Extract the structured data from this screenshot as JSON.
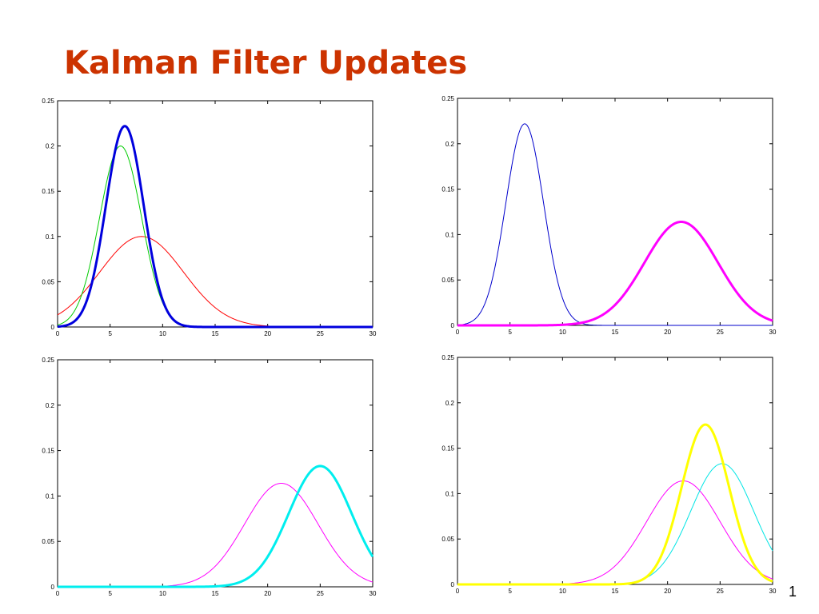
{
  "slide": {
    "title": "Kalman Filter Updates",
    "page_number": "1"
  },
  "chart_data": [
    {
      "type": "line",
      "xlim": [
        0,
        30
      ],
      "ylim": [
        0,
        0.25
      ],
      "x_ticks": [
        "0",
        "5",
        "10",
        "15",
        "20",
        "25",
        "30"
      ],
      "y_ticks": [
        "0",
        "0.05",
        "0.1",
        "0.15",
        "0.2",
        "0.25"
      ],
      "grid": false,
      "series": [
        {
          "color": "#ff0000",
          "width": "thin",
          "curve": "gaussian",
          "mean": 8.0,
          "peak": 0.1
        },
        {
          "color": "#00cc00",
          "width": "thin",
          "curve": "gaussian",
          "mean": 6.0,
          "peak": 0.2
        },
        {
          "color": "#0000dd",
          "width": "thick",
          "curve": "gaussian",
          "mean": 6.4,
          "peak": 0.222
        }
      ]
    },
    {
      "type": "line",
      "xlim": [
        0,
        30
      ],
      "ylim": [
        0,
        0.25
      ],
      "x_ticks": [
        "0",
        "5",
        "10",
        "15",
        "20",
        "25",
        "30"
      ],
      "y_ticks": [
        "0",
        "0.05",
        "0.1",
        "0.15",
        "0.2",
        "0.25"
      ],
      "grid": false,
      "series": [
        {
          "color": "#0000cc",
          "width": "thin",
          "curve": "gaussian",
          "mean": 6.4,
          "peak": 0.222
        },
        {
          "color": "#ff00ff",
          "width": "thick",
          "curve": "gaussian",
          "mean": 21.3,
          "peak": 0.114
        }
      ]
    },
    {
      "type": "line",
      "xlim": [
        0,
        30
      ],
      "ylim": [
        0,
        0.25
      ],
      "x_ticks": [
        "0",
        "5",
        "10",
        "15",
        "20",
        "25",
        "30"
      ],
      "y_ticks": [
        "0",
        "0.05",
        "0.1",
        "0.15",
        "0.2",
        "0.25"
      ],
      "grid": false,
      "series": [
        {
          "color": "#ff00ff",
          "width": "thin",
          "curve": "gaussian",
          "mean": 21.3,
          "peak": 0.114
        },
        {
          "color": "#00eeee",
          "width": "thick",
          "curve": "gaussian",
          "mean": 25.0,
          "peak": 0.133
        }
      ]
    },
    {
      "type": "line",
      "xlim": [
        0,
        30
      ],
      "ylim": [
        0,
        0.25
      ],
      "x_ticks": [
        "0",
        "5",
        "10",
        "15",
        "20",
        "25",
        "30"
      ],
      "y_ticks": [
        "0",
        "0.05",
        "0.1",
        "0.15",
        "0.2",
        "0.25"
      ],
      "grid": false,
      "series": [
        {
          "color": "#ff00ff",
          "width": "thin",
          "curve": "gaussian",
          "mean": 21.5,
          "peak": 0.114
        },
        {
          "color": "#00e5e5",
          "width": "thin",
          "curve": "gaussian",
          "mean": 25.2,
          "peak": 0.133
        },
        {
          "color": "#ffff00",
          "width": "thick",
          "curve": "gaussian",
          "mean": 23.6,
          "peak": 0.176
        }
      ]
    }
  ]
}
